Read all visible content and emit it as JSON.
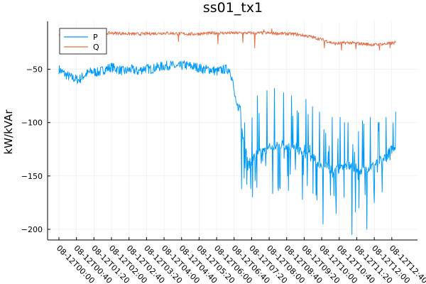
{
  "chart_data": {
    "type": "line",
    "title": "ss01_tx1",
    "xlabel": "",
    "ylabel": "kW/kVAr",
    "x_start": "08-12T00:00",
    "x_end": "08-12T12:50",
    "x_ticks": [
      "08-12T00:00",
      "08-12T00:40",
      "08-12T01:20",
      "08-12T02:00",
      "08-12T02:40",
      "08-12T03:20",
      "08-12T04:00",
      "08-12T04:40",
      "08-12T05:20",
      "08-12T06:00",
      "08-12T06:40",
      "08-12T07:20",
      "08-12T08:00",
      "08-12T08:40",
      "08-12T09:20",
      "08-12T10:00",
      "08-12T10:40",
      "08-12T11:20",
      "08-12T12:00",
      "08-12T12:40"
    ],
    "x_tick_hours": [
      0,
      0.6667,
      1.3333,
      2,
      2.6667,
      3.3333,
      4,
      4.6667,
      5.3333,
      6,
      6.6667,
      7.3333,
      8,
      8.6667,
      9.3333,
      10,
      10.6667,
      11.3333,
      12,
      12.6667
    ],
    "y_ticks": [
      -50,
      -100,
      -150,
      -200
    ],
    "y_tick_labels": [
      "−50",
      "−100",
      "−150",
      "−200"
    ],
    "ylim": [
      -210,
      -5
    ],
    "grid": true,
    "legend": "top-left",
    "series": [
      {
        "name": "P",
        "color": "#009AFA",
        "anchors": [
          [
            0.0,
            -50
          ],
          [
            0.25,
            -55
          ],
          [
            0.5,
            -58
          ],
          [
            0.75,
            -60
          ],
          [
            1.0,
            -55
          ],
          [
            1.25,
            -52
          ],
          [
            1.5,
            -53
          ],
          [
            1.75,
            -50
          ],
          [
            2.0,
            -48
          ],
          [
            2.25,
            -50
          ],
          [
            2.5,
            -52
          ],
          [
            2.75,
            -50
          ],
          [
            3.0,
            -52
          ],
          [
            3.25,
            -49
          ],
          [
            3.5,
            -50
          ],
          [
            3.75,
            -48
          ],
          [
            4.0,
            -47
          ],
          [
            4.25,
            -46
          ],
          [
            4.5,
            -48
          ],
          [
            4.75,
            -46
          ],
          [
            5.0,
            -47
          ],
          [
            5.25,
            -48
          ],
          [
            5.5,
            -50
          ],
          [
            5.75,
            -50
          ],
          [
            6.0,
            -52
          ],
          [
            6.3,
            -50
          ],
          [
            6.5,
            -50
          ],
          [
            6.6,
            -60
          ],
          [
            6.75,
            -85
          ],
          [
            6.9,
            -85
          ],
          [
            7.0,
            -110
          ],
          [
            7.2,
            -140
          ],
          [
            7.5,
            -130
          ],
          [
            8.0,
            -125
          ],
          [
            8.5,
            -120
          ],
          [
            9.0,
            -125
          ],
          [
            9.5,
            -130
          ],
          [
            10.0,
            -140
          ],
          [
            10.5,
            -145
          ],
          [
            11.0,
            -140
          ],
          [
            11.5,
            -145
          ],
          [
            12.0,
            -140
          ],
          [
            12.5,
            -130
          ],
          [
            12.83,
            -120
          ]
        ],
        "noise": 4.5,
        "spikes": [
          [
            6.95,
            -162
          ],
          [
            7.07,
            -100
          ],
          [
            7.15,
            -158
          ],
          [
            7.3,
            -70
          ],
          [
            7.48,
            -170
          ],
          [
            7.55,
            -75
          ],
          [
            7.75,
            -163
          ],
          [
            7.92,
            -70
          ],
          [
            8.08,
            -168
          ],
          [
            8.2,
            -68
          ],
          [
            8.4,
            -160
          ],
          [
            8.55,
            -72
          ],
          [
            8.7,
            -150
          ],
          [
            8.85,
            -75
          ],
          [
            9.0,
            -178
          ],
          [
            9.12,
            -80
          ],
          [
            9.27,
            -172
          ],
          [
            9.4,
            -78
          ],
          [
            9.55,
            -183
          ],
          [
            9.65,
            -85
          ],
          [
            9.78,
            -168
          ],
          [
            9.92,
            -90
          ],
          [
            10.05,
            -195
          ],
          [
            10.15,
            -100
          ],
          [
            10.25,
            -160
          ],
          [
            10.4,
            -95
          ],
          [
            10.55,
            -185
          ],
          [
            10.7,
            -95
          ],
          [
            10.85,
            -170
          ],
          [
            11.0,
            -100
          ],
          [
            11.15,
            -205
          ],
          [
            11.28,
            -100
          ],
          [
            11.42,
            -180
          ],
          [
            11.55,
            -98
          ],
          [
            11.72,
            -200
          ],
          [
            11.85,
            -95
          ],
          [
            12.0,
            -175
          ],
          [
            12.15,
            -100
          ],
          [
            12.3,
            -165
          ],
          [
            12.45,
            -95
          ],
          [
            12.6,
            -135
          ],
          [
            12.72,
            -100
          ],
          [
            12.8,
            -125
          ]
        ]
      },
      {
        "name": "Q",
        "color": "#E26F46",
        "anchors": [
          [
            0.0,
            -18
          ],
          [
            1.0,
            -17
          ],
          [
            2.0,
            -16
          ],
          [
            3.0,
            -17
          ],
          [
            4.0,
            -16
          ],
          [
            5.0,
            -17
          ],
          [
            6.0,
            -16
          ],
          [
            7.0,
            -16
          ],
          [
            8.0,
            -16
          ],
          [
            9.0,
            -17
          ],
          [
            9.5,
            -19
          ],
          [
            10.0,
            -22
          ],
          [
            10.5,
            -26
          ],
          [
            11.0,
            -25
          ],
          [
            11.5,
            -26
          ],
          [
            12.0,
            -27
          ],
          [
            12.5,
            -26
          ],
          [
            12.83,
            -25
          ]
        ],
        "noise": 1.5,
        "spikes": [
          [
            4.55,
            -24
          ],
          [
            6.05,
            -26
          ],
          [
            7.0,
            -25
          ],
          [
            7.45,
            -30
          ],
          [
            7.8,
            -13
          ],
          [
            8.1,
            -12
          ],
          [
            10.1,
            -30
          ],
          [
            10.75,
            -32
          ],
          [
            11.3,
            -31
          ],
          [
            12.2,
            -32
          ],
          [
            12.6,
            -30
          ]
        ]
      }
    ]
  }
}
